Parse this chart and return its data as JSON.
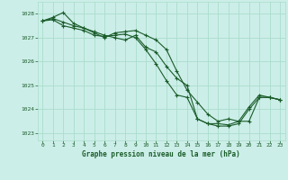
{
  "title": "Graphe pression niveau de la mer (hPa)",
  "bg_color": "#cceee8",
  "grid_color": "#aaddcc",
  "line_color": "#1a5c2a",
  "text_color": "#1a5c2a",
  "xlim": [
    -0.5,
    23.5
  ],
  "ylim": [
    1022.7,
    1028.5
  ],
  "yticks": [
    1023,
    1024,
    1025,
    1026,
    1027,
    1028
  ],
  "xticks": [
    0,
    1,
    2,
    3,
    4,
    5,
    6,
    7,
    8,
    9,
    10,
    11,
    12,
    13,
    14,
    15,
    16,
    17,
    18,
    19,
    20,
    21,
    22,
    23
  ],
  "series": [
    [
      1027.7,
      1027.8,
      1027.65,
      1027.5,
      1027.4,
      1027.25,
      1027.1,
      1027.0,
      1026.9,
      1027.1,
      1026.6,
      1026.4,
      1025.8,
      1025.3,
      1025.0,
      1023.6,
      1023.4,
      1023.3,
      1023.3,
      1023.4,
      1024.0,
      1024.5,
      1024.5,
      1024.4
    ],
    [
      1027.7,
      1027.85,
      1028.05,
      1027.6,
      1027.4,
      1027.2,
      1027.0,
      1027.2,
      1027.25,
      1027.3,
      1027.1,
      1026.9,
      1026.5,
      1025.6,
      1024.8,
      1024.3,
      1023.8,
      1023.5,
      1023.6,
      1023.5,
      1024.1,
      1024.6,
      1024.5,
      1024.4
    ],
    [
      1027.7,
      1027.75,
      1027.5,
      1027.4,
      1027.3,
      1027.1,
      1027.05,
      1027.1,
      1027.15,
      1027.0,
      1026.5,
      1025.9,
      1025.2,
      1024.6,
      1024.5,
      1023.6,
      1023.4,
      1023.4,
      1023.35,
      1023.5,
      1023.5,
      1024.5,
      1024.5,
      1024.4
    ]
  ]
}
